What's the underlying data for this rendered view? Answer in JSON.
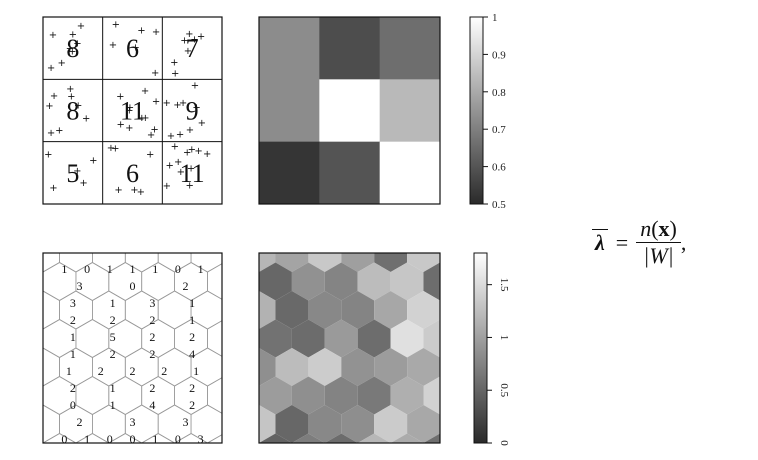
{
  "quadrat_counts": [
    [
      "8",
      "6",
      "7"
    ],
    [
      "8",
      "11",
      "9"
    ],
    [
      "5",
      "6",
      "11"
    ]
  ],
  "quadrat_intensity_colors": [
    [
      "#8c8c8c",
      "#4d4d4d",
      "#6e6e6e"
    ],
    [
      "#8c8c8c",
      "#ffffff",
      "#b9b9b9"
    ],
    [
      "#353535",
      "#545454",
      "#ffffff"
    ]
  ],
  "colorbar_top": {
    "ticks": [
      "1",
      "0.9",
      "0.8",
      "0.7",
      "0.6",
      "0.5"
    ],
    "min": 0.5,
    "max": 1.0,
    "tick_values": [
      1,
      0.9,
      0.8,
      0.7,
      0.6,
      0.5
    ]
  },
  "colorbar_bottom": {
    "ticks": [
      "1.5",
      "1",
      "0.5",
      "0"
    ],
    "min": 0,
    "max": 1.8,
    "tick_values": [
      1.5,
      1,
      0.5,
      0
    ]
  },
  "hex_counts": [
    [
      "1",
      "0",
      "1",
      "1",
      "1",
      "0",
      "1"
    ],
    [
      "3",
      "0",
      "2"
    ],
    [
      "3",
      "1",
      "3",
      "1"
    ],
    [
      "2",
      "2",
      "2",
      "1"
    ],
    [
      "1",
      "5",
      "2",
      "2"
    ],
    [
      "1",
      "2",
      "2",
      "4"
    ],
    [
      "1",
      "2",
      "2",
      "2",
      "1"
    ],
    [
      "2",
      "1",
      "2",
      "2"
    ],
    [
      "0",
      "1",
      "4",
      "2"
    ],
    [
      "2",
      "3",
      "3"
    ],
    [
      "0",
      "1",
      "0",
      "0",
      "1",
      "0",
      "3"
    ]
  ],
  "formula": {
    "lambda": "λ",
    "equals": "=",
    "numerator_n": "n",
    "numerator_open": "(",
    "numerator_x": "x",
    "numerator_close": ")",
    "denominator": "|W|",
    "trailing": ","
  }
}
